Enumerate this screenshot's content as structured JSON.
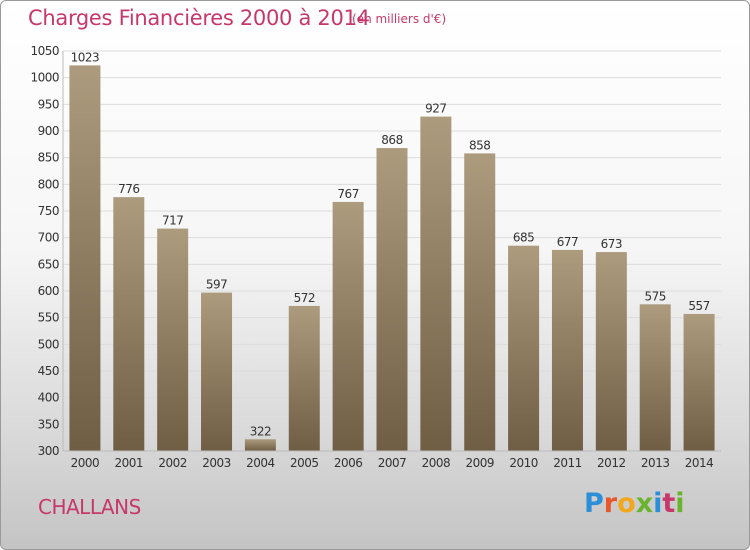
{
  "header": {
    "title": "Charges Financières 2000 à 2014",
    "unit": "(en milliers d'€)"
  },
  "footer": {
    "city": "CHALLANS",
    "brand": "Proxiti",
    "brand_colors": [
      "#2a8fd8",
      "#e8572a",
      "#f2a81d",
      "#6ab42d",
      "#2a8fd8",
      "#c7386a",
      "#6ab42d"
    ]
  },
  "colors": {
    "accent": "#c7386a",
    "bar_top": "#ad9b7e",
    "bar_bottom": "#6f5e44",
    "axis_text": "#333333"
  },
  "chart_data": {
    "type": "bar",
    "title": "Charges Financières 2000 à 2014",
    "categories": [
      "2000",
      "2001",
      "2002",
      "2003",
      "2004",
      "2005",
      "2006",
      "2007",
      "2008",
      "2009",
      "2010",
      "2011",
      "2012",
      "2013",
      "2014"
    ],
    "values": [
      1023,
      776,
      717,
      597,
      322,
      572,
      767,
      868,
      927,
      858,
      685,
      677,
      673,
      575,
      557
    ],
    "ylim": [
      300,
      1050
    ],
    "yticks": [
      300,
      350,
      400,
      450,
      500,
      550,
      600,
      650,
      700,
      750,
      800,
      850,
      900,
      950,
      1000,
      1050
    ],
    "grid": true,
    "data_labels": true
  }
}
